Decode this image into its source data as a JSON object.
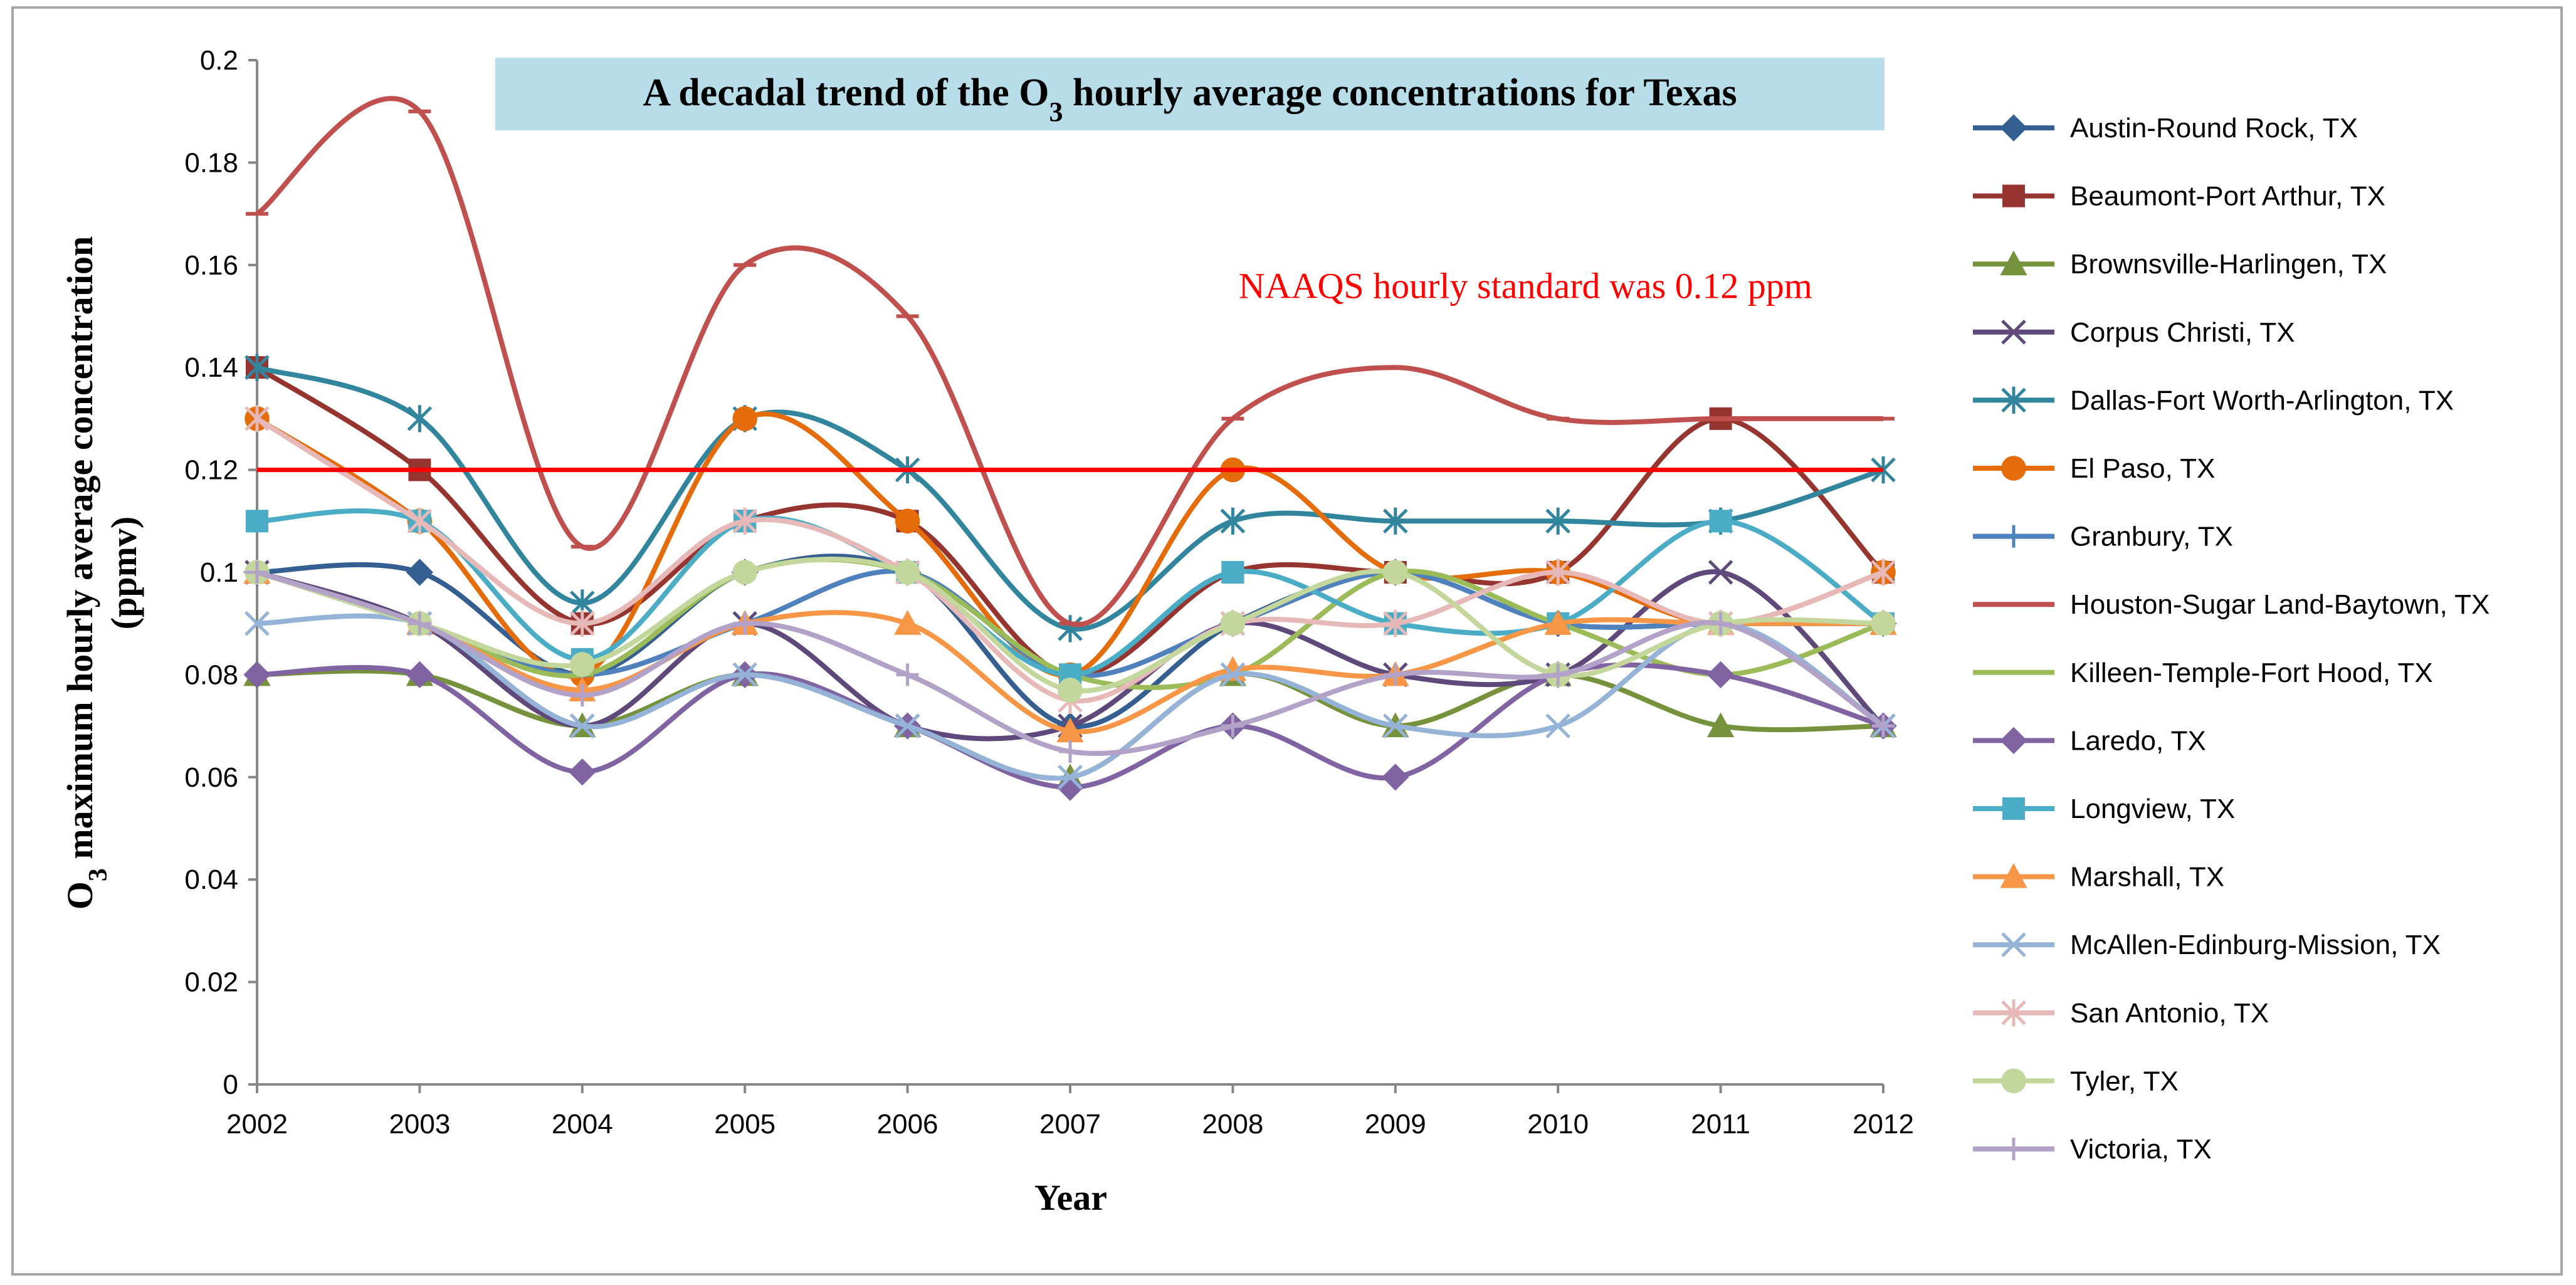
{
  "chart_data": {
    "type": "line",
    "title": {
      "main": "A decadal trend of the O",
      "sub": "3",
      "rest": " hourly average concentrations for Texas"
    },
    "title_bg": "#b7dee8",
    "xlabel": "Year",
    "ylabel_line1": {
      "main": "O",
      "sub": "3",
      "rest": " maximum hourly average concentration"
    },
    "ylabel_line2": "(ppmv)",
    "x": [
      "2002",
      "2003",
      "2004",
      "2005",
      "2006",
      "2007",
      "2008",
      "2009",
      "2010",
      "2011",
      "2012"
    ],
    "ylim": [
      0,
      0.2
    ],
    "yticks": [
      "0",
      "0.02",
      "0.04",
      "0.06",
      "0.08",
      "0.1",
      "0.12",
      "0.14",
      "0.16",
      "0.18",
      "0.2"
    ],
    "ytick_values": [
      0,
      0.02,
      0.04,
      0.06,
      0.08,
      0.1,
      0.12,
      0.14,
      0.16,
      0.18,
      0.2
    ],
    "reference_line": {
      "value": 0.12,
      "color": "#ff0000"
    },
    "annotation": {
      "text": "NAAQS hourly standard was 0.12 ppm",
      "color": "#ff0000",
      "x": 2009.8,
      "y": 0.156
    },
    "series": [
      {
        "name": "Austin-Round Rock, TX",
        "color": "#355e91",
        "marker": "diamond",
        "values": [
          0.1,
          0.1,
          0.08,
          0.1,
          0.1,
          0.07,
          0.09,
          0.1,
          0.09,
          0.09,
          0.09
        ]
      },
      {
        "name": "Beaumont-Port Arthur, TX",
        "color": "#963430",
        "marker": "square",
        "values": [
          0.14,
          0.12,
          0.09,
          0.11,
          0.11,
          0.08,
          0.1,
          0.1,
          0.1,
          0.13,
          0.1
        ]
      },
      {
        "name": "Brownsville-Harlingen, TX",
        "color": "#76923c",
        "marker": "triangle",
        "values": [
          0.08,
          0.08,
          0.07,
          0.08,
          0.07,
          0.06,
          0.08,
          0.07,
          0.08,
          0.07,
          0.07
        ]
      },
      {
        "name": "Corpus Christi, TX",
        "color": "#5f497a",
        "marker": "x",
        "values": [
          0.1,
          0.09,
          0.07,
          0.09,
          0.07,
          0.07,
          0.09,
          0.08,
          0.08,
          0.1,
          0.07
        ]
      },
      {
        "name": "Dallas-Fort Worth-Arlington, TX",
        "color": "#31859c",
        "marker": "star",
        "values": [
          0.14,
          0.13,
          0.094,
          0.13,
          0.12,
          0.089,
          0.11,
          0.11,
          0.11,
          0.11,
          0.12
        ]
      },
      {
        "name": "El Paso, TX",
        "color": "#e46c0a",
        "marker": "circle",
        "values": [
          0.13,
          0.11,
          0.08,
          0.13,
          0.11,
          0.08,
          0.12,
          0.1,
          0.1,
          0.09,
          0.1
        ]
      },
      {
        "name": "Granbury, TX",
        "color": "#4f81bd",
        "marker": "plus",
        "values": [
          0.1,
          0.09,
          0.08,
          0.09,
          0.1,
          0.08,
          0.09,
          0.1,
          0.09,
          0.09,
          0.09
        ]
      },
      {
        "name": "Houston-Sugar Land-Baytown, TX",
        "color": "#c0504d",
        "marker": "dash",
        "values": [
          0.17,
          0.19,
          0.105,
          0.16,
          0.15,
          0.09,
          0.13,
          0.14,
          0.13,
          0.13,
          0.13
        ]
      },
      {
        "name": "Killeen-Temple-Fort Hood, TX",
        "color": "#9bbb59",
        "marker": "dash",
        "values": [
          0.1,
          0.09,
          0.08,
          0.1,
          0.1,
          0.08,
          0.08,
          0.1,
          0.09,
          0.08,
          0.09
        ]
      },
      {
        "name": "Laredo, TX",
        "color": "#8064a2",
        "marker": "diamond",
        "values": [
          0.08,
          0.08,
          0.061,
          0.08,
          0.07,
          0.058,
          0.07,
          0.06,
          0.08,
          0.08,
          0.07
        ]
      },
      {
        "name": "Longview, TX",
        "color": "#4bacc6",
        "marker": "square",
        "values": [
          0.11,
          0.11,
          0.083,
          0.11,
          0.1,
          0.08,
          0.1,
          0.09,
          0.09,
          0.11,
          0.09
        ]
      },
      {
        "name": "Marshall, TX",
        "color": "#f79646",
        "marker": "triangle",
        "values": [
          0.1,
          0.09,
          0.077,
          0.09,
          0.09,
          0.069,
          0.081,
          0.08,
          0.09,
          0.09,
          0.09
        ]
      },
      {
        "name": "McAllen-Edinburg-Mission, TX",
        "color": "#95b3d7",
        "marker": "x",
        "values": [
          0.09,
          0.09,
          0.07,
          0.08,
          0.07,
          0.06,
          0.08,
          0.07,
          0.07,
          0.09,
          0.07
        ]
      },
      {
        "name": "San Antonio, TX",
        "color": "#e6b9b8",
        "marker": "star",
        "values": [
          0.13,
          0.11,
          0.09,
          0.11,
          0.1,
          0.075,
          0.09,
          0.09,
          0.1,
          0.09,
          0.1
        ]
      },
      {
        "name": "Tyler, TX",
        "color": "#c3d69b",
        "marker": "circle",
        "values": [
          0.1,
          0.09,
          0.082,
          0.1,
          0.1,
          0.077,
          0.09,
          0.1,
          0.08,
          0.09,
          0.09
        ]
      },
      {
        "name": "Victoria, TX",
        "color": "#b3a2c7",
        "marker": "plus",
        "values": [
          0.1,
          0.09,
          0.076,
          0.09,
          0.08,
          0.065,
          0.07,
          0.08,
          0.08,
          0.09,
          0.07
        ]
      }
    ]
  }
}
